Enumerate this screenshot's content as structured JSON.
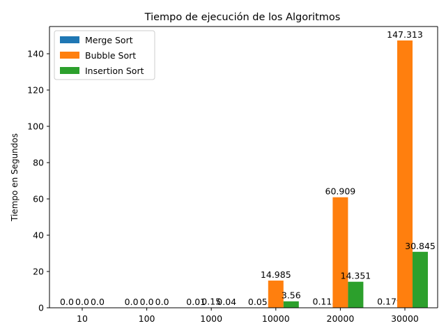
{
  "chart_data": {
    "type": "bar",
    "title": "Tiempo de ejecución de los Algoritmos",
    "xlabel": "",
    "ylabel": "Tiempo en Segundos",
    "categories": [
      "10",
      "100",
      "1000",
      "10000",
      "20000",
      "30000"
    ],
    "ylim": [
      0,
      155
    ],
    "yticks": [
      0,
      20,
      40,
      60,
      80,
      100,
      120,
      140
    ],
    "grid": false,
    "legend_position": "top-left",
    "series": [
      {
        "name": "Merge Sort",
        "color": "#1f77b4",
        "values": [
          0.0,
          0.0,
          0.01,
          0.055,
          0.115,
          0.179
        ]
      },
      {
        "name": "Bubble Sort",
        "color": "#ff7f0e",
        "values": [
          0.0,
          0.0,
          0.15,
          14.985,
          60.909,
          147.313
        ]
      },
      {
        "name": "Insertion Sort",
        "color": "#2ca02c",
        "values": [
          0.0,
          0.0,
          0.04,
          3.56,
          14.351,
          30.845
        ]
      }
    ]
  }
}
